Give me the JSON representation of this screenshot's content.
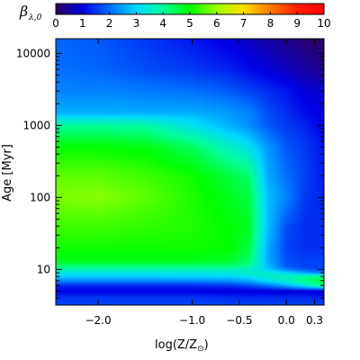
{
  "chart_data": {
    "type": "heatmap",
    "colorbar": {
      "label": "β",
      "label_sub": "λ,0",
      "range": [
        0,
        10
      ],
      "ticks": [
        "0",
        "1",
        "2",
        "3",
        "4",
        "5",
        "6",
        "7",
        "8",
        "9",
        "10"
      ],
      "colors": [
        "#2a0060",
        "#0000e6",
        "#0070ff",
        "#00d8ff",
        "#00ff9a",
        "#00ff00",
        "#9aff00",
        "#ffe000",
        "#ff7a00",
        "#ff2000",
        "#ff0000"
      ]
    },
    "xlabel": "log(Z/Z",
    "xlabel_sub": "⊙",
    "xlabel_end": ")",
    "ylabel": "Age [Myr]",
    "xlim": [
      -2.45,
      0.4
    ],
    "ylim": [
      3.2,
      16000
    ],
    "yscale": "log",
    "x_ticks": [
      {
        "value": -2.0,
        "label": "−2.0"
      },
      {
        "value": -1.0,
        "label": "−1.0"
      },
      {
        "value": -0.5,
        "label": "−0.5"
      },
      {
        "value": 0.0,
        "label": "0.0"
      },
      {
        "value": 0.3,
        "label": "0.3"
      }
    ],
    "y_ticks": [
      {
        "value": 10,
        "label": "10"
      },
      {
        "value": 100,
        "label": "100"
      },
      {
        "value": 1000,
        "label": "1000"
      },
      {
        "value": 10000,
        "label": "10000"
      }
    ],
    "x_grid": [
      -2.4,
      -2.0,
      -1.5,
      -1.0,
      -0.6,
      -0.4,
      -0.2,
      0.0,
      0.2,
      0.4
    ],
    "y_grid": [
      3.2,
      4,
      5,
      6,
      7,
      8,
      9,
      10,
      11,
      13,
      20,
      40,
      100,
      200,
      500,
      1000,
      1500,
      3000,
      6000,
      16000
    ],
    "z": [
      [
        1.6,
        1.6,
        1.6,
        1.6,
        1.6,
        1.6,
        1.6,
        1.6,
        1.6,
        1.6
      ],
      [
        1.5,
        1.5,
        1.5,
        1.5,
        1.4,
        1.4,
        1.4,
        1.4,
        1.4,
        1.3
      ],
      [
        1.0,
        1.0,
        1.0,
        1.0,
        0.9,
        0.9,
        0.9,
        0.9,
        0.9,
        0.9
      ],
      [
        1.4,
        1.4,
        1.4,
        1.4,
        1.5,
        1.7,
        2.1,
        2.6,
        3.4,
        4.2
      ],
      [
        2.3,
        2.3,
        2.3,
        2.3,
        2.4,
        2.6,
        3.2,
        3.6,
        4.2,
        4.6
      ],
      [
        2.9,
        2.9,
        2.9,
        3.0,
        3.0,
        3.2,
        3.5,
        3.7,
        4.0,
        4.2
      ],
      [
        3.3,
        3.3,
        3.3,
        3.3,
        3.4,
        3.6,
        3.5,
        3.0,
        2.5,
        2.0
      ],
      [
        3.8,
        3.8,
        3.8,
        3.8,
        3.7,
        3.6,
        2.9,
        2.2,
        1.8,
        1.6
      ],
      [
        4.2,
        4.2,
        4.2,
        4.2,
        4.2,
        4.0,
        2.8,
        1.8,
        1.6,
        1.6
      ],
      [
        4.8,
        4.8,
        4.8,
        4.8,
        4.7,
        4.3,
        2.6,
        1.7,
        1.6,
        1.6
      ],
      [
        5.1,
        5.1,
        5.1,
        5.1,
        5.0,
        4.6,
        2.6,
        1.6,
        1.4,
        1.4
      ],
      [
        5.4,
        5.4,
        5.3,
        5.2,
        5.0,
        4.8,
        2.8,
        1.7,
        1.4,
        1.4
      ],
      [
        5.8,
        5.9,
        5.6,
        5.2,
        4.8,
        4.6,
        2.8,
        2.2,
        1.5,
        1.3
      ],
      [
        5.6,
        5.6,
        5.4,
        5.1,
        4.6,
        4.3,
        2.6,
        2.0,
        1.6,
        1.2
      ],
      [
        5.0,
        5.0,
        4.9,
        4.4,
        3.6,
        3.2,
        2.4,
        1.8,
        1.5,
        1.2
      ],
      [
        4.0,
        4.0,
        3.9,
        3.2,
        2.6,
        2.3,
        1.8,
        1.5,
        1.3,
        1.0
      ],
      [
        2.6,
        2.6,
        2.6,
        2.6,
        2.4,
        2.2,
        1.7,
        1.4,
        1.1,
        0.9
      ],
      [
        2.2,
        2.2,
        2.1,
        2.0,
        1.8,
        1.6,
        1.4,
        1.2,
        0.9,
        0.8
      ],
      [
        2.0,
        1.9,
        1.7,
        1.5,
        1.3,
        1.1,
        0.9,
        0.7,
        0.5,
        0.3
      ],
      [
        1.9,
        1.8,
        1.5,
        1.2,
        0.9,
        0.7,
        0.5,
        0.3,
        0.1,
        0.0
      ]
    ]
  }
}
